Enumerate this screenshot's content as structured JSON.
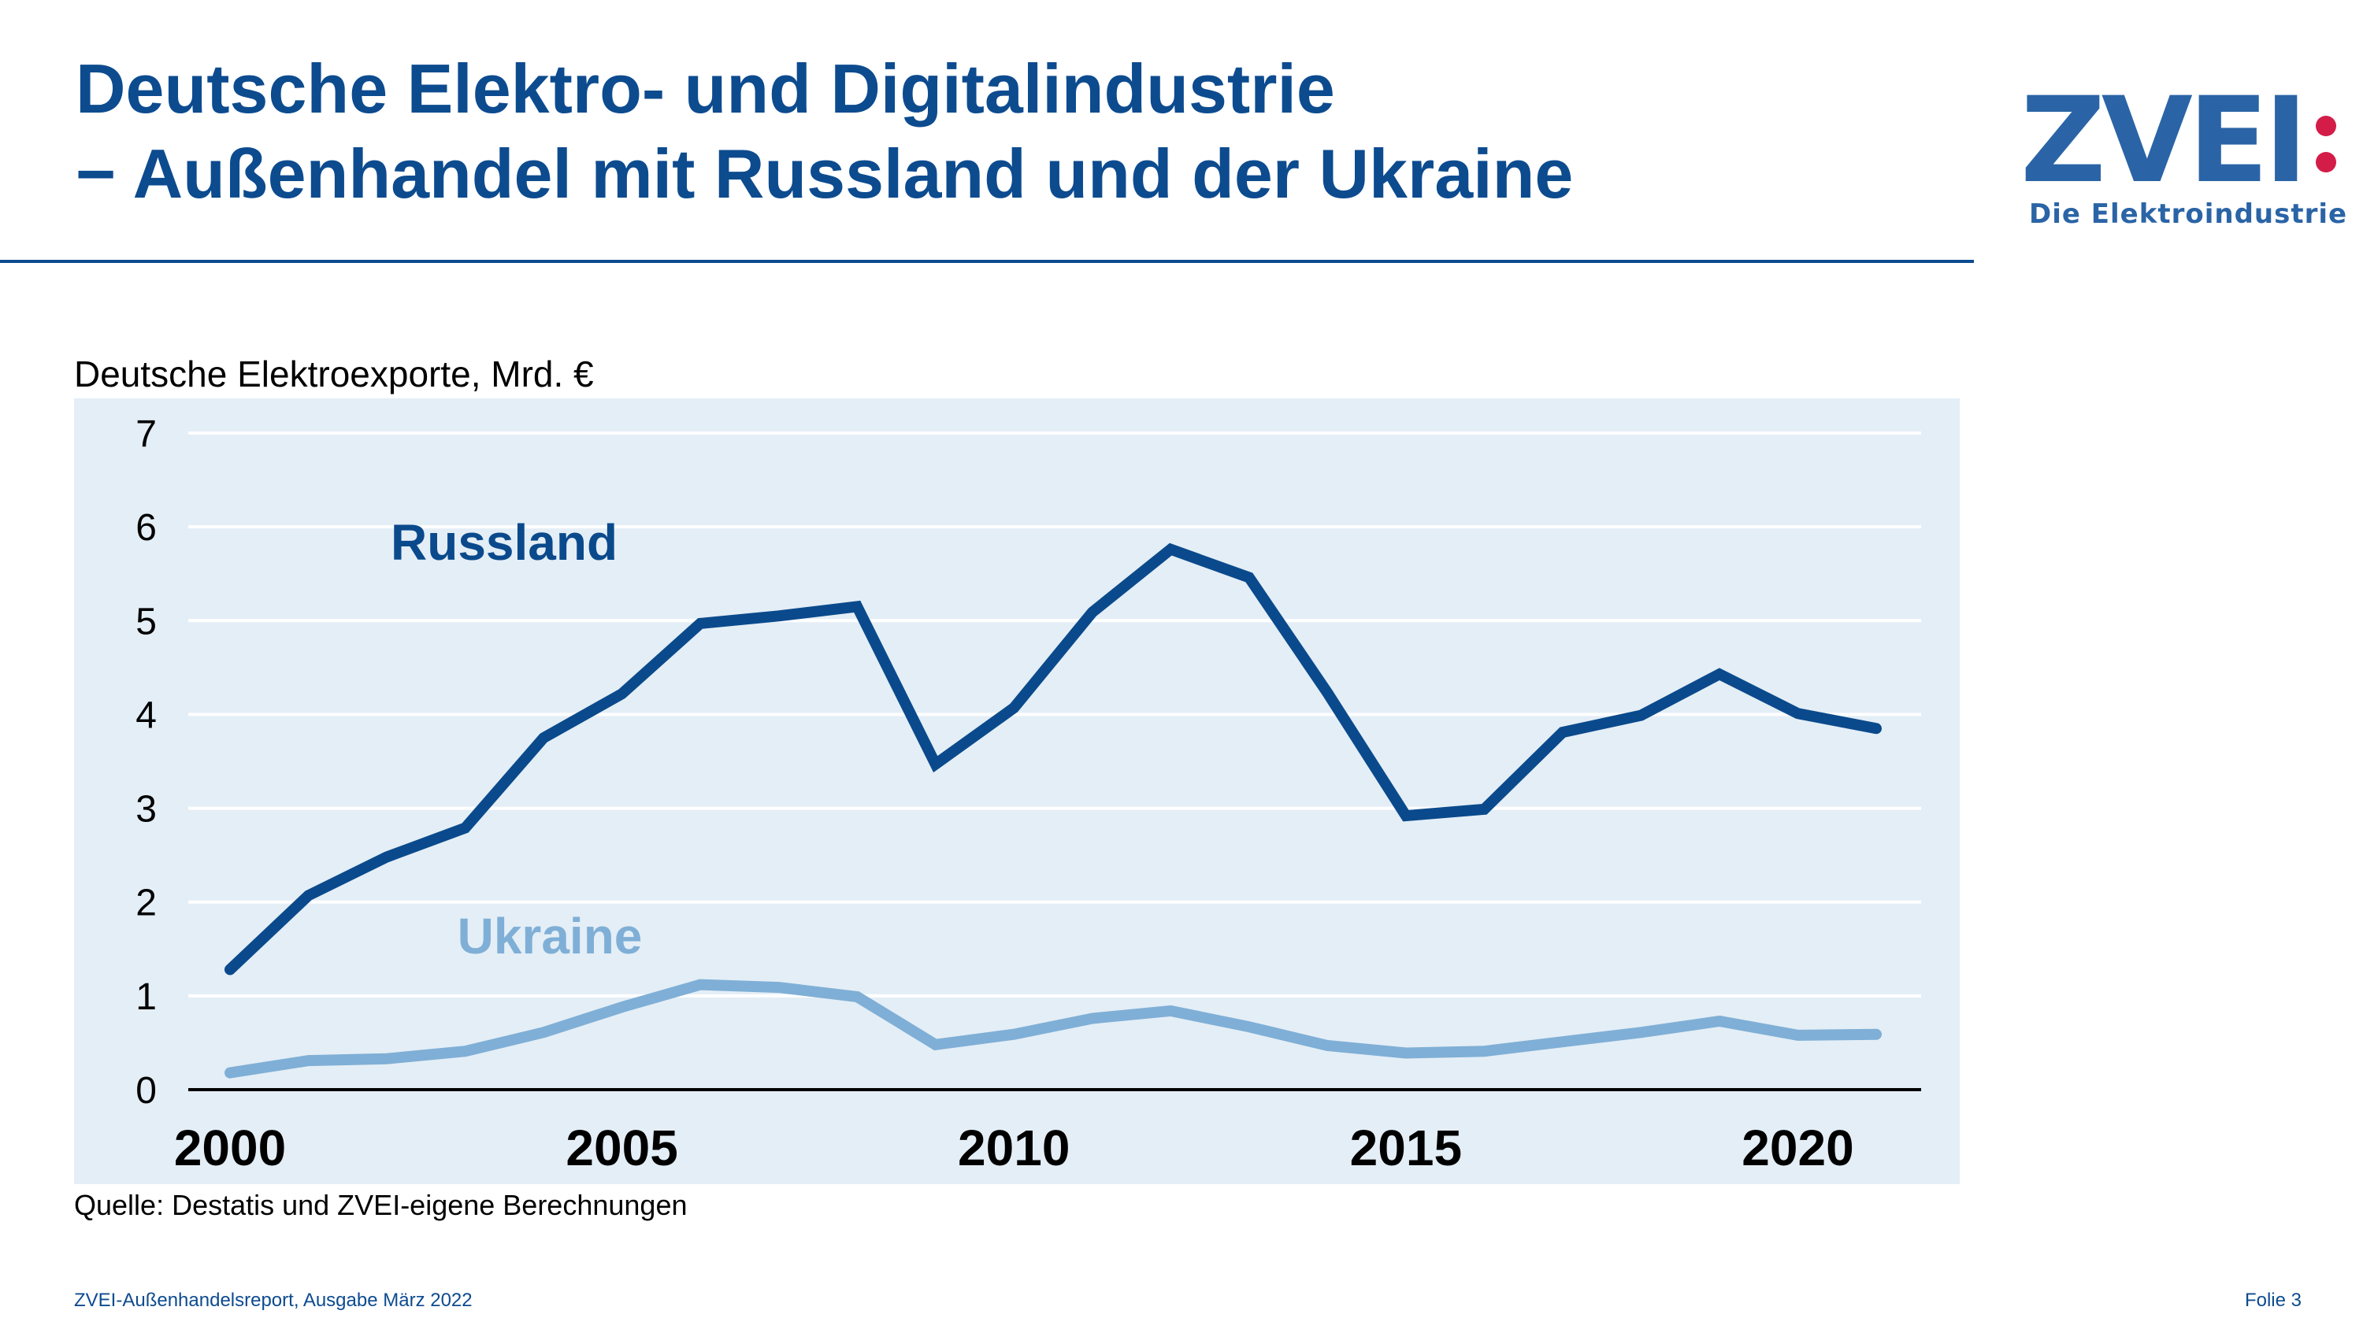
{
  "header": {
    "title": "Deutsche Elektro- und Digitalindustrie",
    "subtitle": "− Außenhandel mit Russland und der Ukraine"
  },
  "logo": {
    "wordmark": "ZVEI:",
    "tagline": "Die Elektroindustrie"
  },
  "colors": {
    "brand_blue": "#0d4b8f",
    "russland": "#0a4a8c",
    "ukraine": "#7fafd6",
    "panel_bg": "#e4eef6",
    "logo_dot": "#d31d48"
  },
  "chart_data": {
    "type": "line",
    "title": "Deutsche Elektroexporte, Mrd. €",
    "xlabel": "",
    "ylabel": "",
    "x": [
      2000,
      2001,
      2002,
      2003,
      2004,
      2005,
      2006,
      2007,
      2008,
      2009,
      2010,
      2011,
      2012,
      2013,
      2014,
      2015,
      2016,
      2017,
      2018,
      2019,
      2020,
      2021
    ],
    "x_ticks": [
      2000,
      2005,
      2010,
      2015,
      2020
    ],
    "y_ticks": [
      0,
      1,
      2,
      3,
      4,
      5,
      6,
      7
    ],
    "ylim": [
      0,
      7
    ],
    "grid": true,
    "series": [
      {
        "name": "Russland",
        "values": [
          1.28,
          2.07,
          2.48,
          2.79,
          3.75,
          4.22,
          4.97,
          5.05,
          5.15,
          3.47,
          4.07,
          5.09,
          5.76,
          5.46,
          4.23,
          2.92,
          2.99,
          3.81,
          3.99,
          4.43,
          4.01,
          3.85
        ]
      },
      {
        "name": "Ukraine",
        "values": [
          0.18,
          0.31,
          0.33,
          0.41,
          0.61,
          0.88,
          1.12,
          1.09,
          0.99,
          0.48,
          0.59,
          0.76,
          0.84,
          0.67,
          0.47,
          0.39,
          0.41,
          0.51,
          0.61,
          0.73,
          0.58,
          0.59
        ]
      }
    ]
  },
  "source": "Quelle: Destatis und ZVEI-eigene Berechnungen",
  "footer": {
    "left": "ZVEI-Außenhandelsreport, Ausgabe März 2022",
    "right": "Folie 3"
  }
}
